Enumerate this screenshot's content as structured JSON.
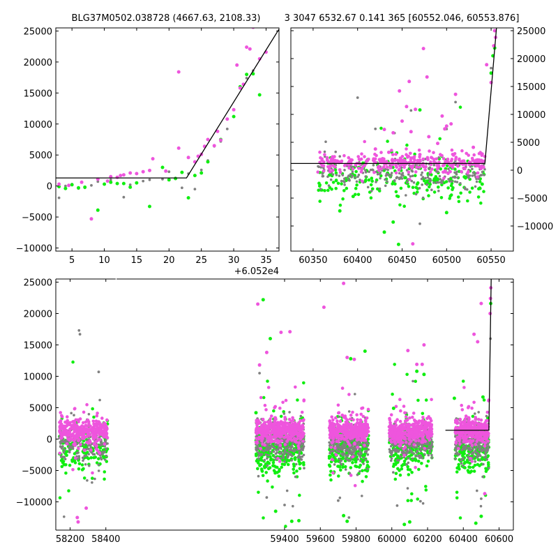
{
  "figure": {
    "title_left": "BLG37M0502.038728 (4667.63, 2108.33)",
    "title_right": "3 3047 6532.67 0.141 365 [60552.046, 60553.876]"
  },
  "colors": {
    "magenta": "#ee55dd",
    "green": "#11ee11",
    "gray": "#808080",
    "model": "#000000"
  },
  "chart_data": [
    {
      "id": "zoom",
      "type": "scatter",
      "title": "",
      "xlim": [
        2.5,
        37
      ],
      "ylim": [
        -10500,
        25500
      ],
      "xticks": [
        5,
        10,
        15,
        20,
        25,
        30,
        35
      ],
      "yticks": [
        -10000,
        -5000,
        0,
        5000,
        10000,
        15000,
        20000,
        25000
      ],
      "x_offset_label": "+6.052e4",
      "model": {
        "x": [
          2.5,
          22.7,
          37
        ],
        "y": [
          1300,
          1300,
          25300
        ]
      },
      "series": [
        {
          "color": "magenta",
          "points": [
            [
              3,
              300
            ],
            [
              4.5,
              100
            ],
            [
              6.5,
              600
            ],
            [
              8,
              -5300
            ],
            [
              9,
              1100
            ],
            [
              10.5,
              800
            ],
            [
              11,
              1500
            ],
            [
              12,
              1400
            ],
            [
              12.5,
              1700
            ],
            [
              13,
              1800
            ],
            [
              14,
              2100
            ],
            [
              15,
              2000
            ],
            [
              16,
              2300
            ],
            [
              17,
              2500
            ],
            [
              17.5,
              4400
            ],
            [
              19.5,
              2400
            ],
            [
              21.5,
              6100
            ],
            [
              21.5,
              18400
            ],
            [
              23,
              4600
            ],
            [
              24,
              3900
            ],
            [
              24.5,
              4800
            ],
            [
              25,
              5100
            ],
            [
              25.5,
              6400
            ],
            [
              26,
              7500
            ],
            [
              27,
              6500
            ],
            [
              27.5,
              8800
            ],
            [
              28,
              7400
            ],
            [
              29,
              10800
            ],
            [
              30,
              12300
            ],
            [
              30.5,
              19500
            ],
            [
              31,
              15800
            ],
            [
              31.5,
              16400
            ],
            [
              32,
              22400
            ],
            [
              32.5,
              22100
            ],
            [
              33,
              25600
            ],
            [
              34,
              20500
            ],
            [
              35,
              21600
            ]
          ]
        },
        {
          "color": "green",
          "points": [
            [
              3,
              -100
            ],
            [
              4,
              -400
            ],
            [
              5,
              200
            ],
            [
              6,
              -300
            ],
            [
              7,
              -200
            ],
            [
              9,
              -3900
            ],
            [
              10,
              300
            ],
            [
              11,
              600
            ],
            [
              12,
              400
            ],
            [
              13,
              400
            ],
            [
              14,
              -200
            ],
            [
              15,
              500
            ],
            [
              17,
              -3300
            ],
            [
              19,
              3000
            ],
            [
              20,
              1000
            ],
            [
              21,
              1200
            ],
            [
              22,
              2200
            ],
            [
              23,
              -1900
            ],
            [
              24,
              1700
            ],
            [
              25,
              2100
            ],
            [
              26,
              3900
            ],
            [
              28,
              7500
            ],
            [
              30,
              11200
            ],
            [
              31,
              16000
            ],
            [
              32,
              18000
            ],
            [
              33,
              18100
            ],
            [
              34,
              14700
            ]
          ]
        },
        {
          "color": "gray",
          "points": [
            [
              3,
              -1900
            ],
            [
              4,
              0
            ],
            [
              5,
              300
            ],
            [
              6,
              -400
            ],
            [
              7,
              -300
            ],
            [
              8,
              100
            ],
            [
              9,
              700
            ],
            [
              11,
              1000
            ],
            [
              13,
              -1800
            ],
            [
              14,
              200
            ],
            [
              16,
              800
            ],
            [
              17,
              1000
            ],
            [
              19,
              1100
            ],
            [
              20,
              2300
            ],
            [
              21,
              1300
            ],
            [
              22,
              -300
            ],
            [
              23,
              2000
            ],
            [
              24,
              -500
            ],
            [
              25,
              2600
            ],
            [
              26,
              4100
            ],
            [
              27,
              6400
            ],
            [
              28,
              7200
            ],
            [
              29,
              9200
            ],
            [
              30,
              11200
            ],
            [
              32,
              17400
            ],
            [
              33,
              18600
            ]
          ]
        }
      ]
    },
    {
      "id": "mid",
      "type": "scatter",
      "title": "",
      "xlim": [
        60325,
        60575
      ],
      "ylim": [
        -14500,
        25500
      ],
      "xticks": [
        60350,
        60400,
        60450,
        60500,
        60550
      ],
      "yticks": [
        -10000,
        -5000,
        0,
        5000,
        10000,
        15000,
        20000,
        25000
      ],
      "model": {
        "x": [
          60325,
          60543,
          60556
        ],
        "y": [
          1200,
          1200,
          25500
        ]
      },
      "regions": [
        {
          "x": [
            60355,
            60543
          ],
          "y": [
            -3500,
            3500
          ],
          "n": [
            300,
            220,
            240
          ],
          "tail": 0.06
        }
      ],
      "series": [
        {
          "color": "magenta",
          "points": [
            [
              60435,
              3200
            ],
            [
              60440,
              6700
            ],
            [
              60447,
              14200
            ],
            [
              60450,
              8800
            ],
            [
              60455,
              11400
            ],
            [
              60460,
              6900
            ],
            [
              60465,
              10900
            ],
            [
              60470,
              2800
            ],
            [
              60474,
              21800
            ],
            [
              60480,
              6000
            ],
            [
              60490,
              4800
            ],
            [
              60495,
              9700
            ],
            [
              60500,
              7900
            ],
            [
              60505,
              8300
            ],
            [
              60510,
              13600
            ],
            [
              60530,
              4100
            ],
            [
              60540,
              2900
            ],
            [
              60545,
              18900
            ],
            [
              60550,
              15700
            ],
            [
              60553,
              22300
            ],
            [
              60554,
              25000
            ],
            [
              60555,
              23800
            ],
            [
              60462,
              -13200
            ],
            [
              60420,
              3800
            ],
            [
              60430,
              7300
            ],
            [
              60458,
              15900
            ],
            [
              60478,
              16700
            ],
            [
              60498,
              7400
            ]
          ]
        },
        {
          "color": "green",
          "points": [
            [
              60380,
              -7300
            ],
            [
              60395,
              -4700
            ],
            [
              60430,
              -11100
            ],
            [
              60440,
              -9300
            ],
            [
              60446,
              -13300
            ],
            [
              60470,
              10800
            ],
            [
              60500,
              -7600
            ],
            [
              60520,
              -1200
            ],
            [
              60540,
              -2500
            ],
            [
              60550,
              17400
            ],
            [
              60552,
              20500
            ],
            [
              60554,
              21900
            ]
          ]
        },
        {
          "color": "gray",
          "points": [
            [
              60400,
              13000
            ],
            [
              60420,
              7400
            ],
            [
              60460,
              10700
            ],
            [
              60470,
              -9600
            ],
            [
              60510,
              12200
            ],
            [
              60550,
              18300
            ]
          ]
        }
      ]
    },
    {
      "id": "full",
      "type": "scatter",
      "title": "",
      "xlim": [
        58120,
        60680
      ],
      "ylim": [
        -14500,
        25500
      ],
      "xticks": [
        58200,
        58400,
        59400,
        59600,
        59800,
        60000,
        60200,
        60400,
        60600
      ],
      "yticks": [
        -10000,
        -5000,
        0,
        5000,
        10000,
        15000,
        20000,
        25000
      ],
      "gap": {
        "from": 58455,
        "to": 58460
      },
      "model": {
        "x": [
          60300,
          60543,
          60556
        ],
        "y": [
          1400,
          1400,
          25500
        ]
      },
      "regions": [
        {
          "x": [
            58140,
            58410
          ],
          "y": [
            -4500,
            2500
          ],
          "n": [
            320,
            150,
            200
          ],
          "tail": 0.12
        },
        {
          "x": [
            59240,
            59510
          ],
          "y": [
            -4500,
            3200
          ],
          "n": [
            400,
            300,
            300
          ],
          "tail": 0.12
        },
        {
          "x": [
            59650,
            59870
          ],
          "y": [
            -4000,
            3000
          ],
          "n": [
            360,
            220,
            260
          ],
          "tail": 0.1
        },
        {
          "x": [
            59985,
            60225
          ],
          "y": [
            -4000,
            3000
          ],
          "n": [
            360,
            220,
            260
          ],
          "tail": 0.1
        },
        {
          "x": [
            60355,
            60543
          ],
          "y": [
            -4500,
            2500
          ],
          "n": [
            320,
            200,
            220
          ],
          "tail": 0.12
        }
      ],
      "series": [
        {
          "color": "magenta",
          "points": [
            [
              58240,
              -12500
            ],
            [
              58245,
              -13200
            ],
            [
              58290,
              -11000
            ],
            [
              59250,
              21500
            ],
            [
              59300,
              13800
            ],
            [
              59260,
              11800
            ],
            [
              59380,
              17000
            ],
            [
              59430,
              17100
            ],
            [
              59620,
              21000
            ],
            [
              59730,
              24800
            ],
            [
              59750,
              13000
            ],
            [
              59790,
              12700
            ],
            [
              60090,
              14100
            ],
            [
              60140,
              11900
            ],
            [
              60170,
              11900
            ],
            [
              60180,
              15000
            ],
            [
              60460,
              16700
            ],
            [
              60480,
              15500
            ],
            [
              60500,
              21600
            ],
            [
              60550,
              20000
            ],
            [
              60552,
              22400
            ],
            [
              60554,
              24100
            ],
            [
              60520,
              -8700
            ]
          ]
        },
        {
          "color": "green",
          "points": [
            [
              59240,
              4200
            ],
            [
              59280,
              22200
            ],
            [
              59320,
              16000
            ],
            [
              59440,
              -13100
            ],
            [
              59480,
              -13000
            ],
            [
              59350,
              -11500
            ],
            [
              59770,
              12800
            ],
            [
              59850,
              14000
            ],
            [
              59730,
              -12200
            ],
            [
              59750,
              -13100
            ],
            [
              60070,
              -13600
            ],
            [
              60100,
              -13200
            ],
            [
              60140,
              10800
            ],
            [
              60180,
              10300
            ],
            [
              60010,
              4900
            ],
            [
              60470,
              -13400
            ],
            [
              60500,
              -12300
            ],
            [
              60510,
              6700
            ],
            [
              60553,
              21600
            ],
            [
              60350,
              6500
            ]
          ]
        },
        {
          "color": "gray",
          "points": [
            [
              58250,
              17300
            ],
            [
              58255,
              16700
            ],
            [
              58360,
              10700
            ],
            [
              59260,
              10500
            ],
            [
              59300,
              -9300
            ],
            [
              59400,
              -10500
            ],
            [
              59700,
              -9800
            ],
            [
              59760,
              -12500
            ],
            [
              60030,
              -10600
            ],
            [
              60160,
              -9900
            ],
            [
              60500,
              -9500
            ],
            [
              60552,
              16000
            ]
          ]
        }
      ]
    }
  ]
}
